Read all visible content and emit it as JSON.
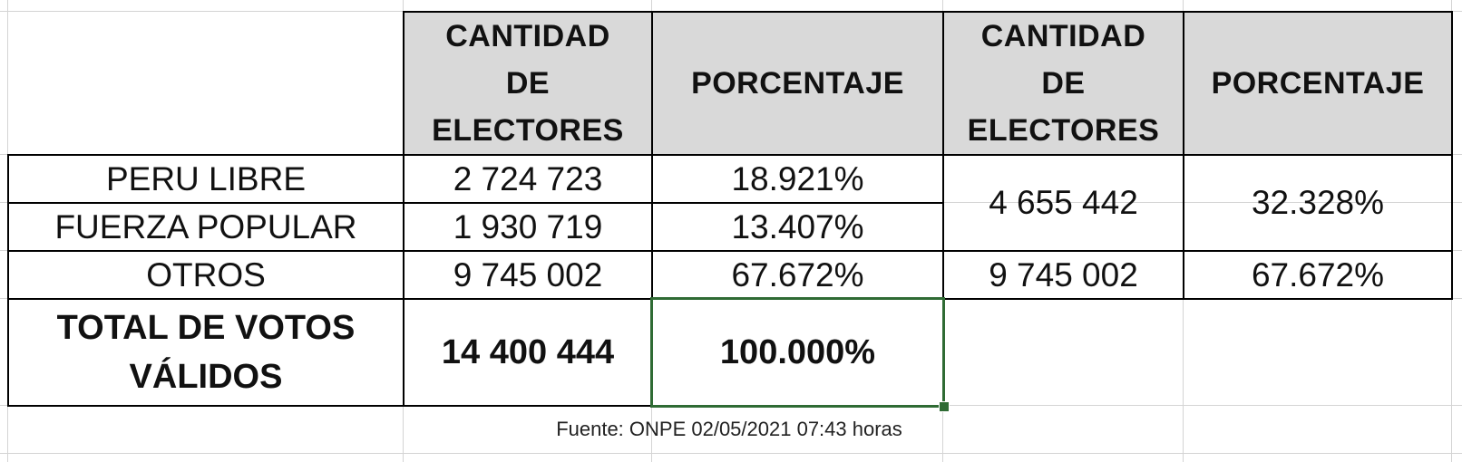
{
  "table": {
    "header": [
      "CANTIDAD DE ELECTORES",
      "PORCENTAJE",
      "CANTIDAD DE ELECTORES",
      "PORCENTAJE"
    ],
    "rows": [
      [
        "PERU LIBRE",
        "2 724 723",
        "18.921%"
      ],
      [
        "FUERZA POPULAR",
        "1 930 719",
        "13.407%"
      ],
      [
        "OTROS",
        "9 745 002",
        "67.672%"
      ]
    ],
    "combined": [
      [
        "4 655 442",
        "32.328%"
      ],
      [
        "9 745 002",
        "67.672%"
      ]
    ],
    "total": [
      "TOTAL DE VOTOS VÁLIDOS",
      "14 400 444",
      "100.000%"
    ]
  },
  "source": "Fuente: ONPE 02/05/2021 07:43 horas"
}
